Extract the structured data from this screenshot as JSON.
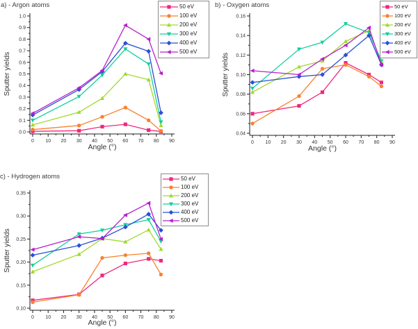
{
  "chart_data": [
    {
      "id": "a",
      "type": "line",
      "title": "a) - Argon atoms",
      "xlabel": "Angle (°)",
      "ylabel": "Sputter yields",
      "x": [
        0,
        30,
        45,
        60,
        75,
        83
      ],
      "xlim": [
        0,
        90
      ],
      "xtick_values": [
        0,
        10,
        20,
        30,
        40,
        50,
        60,
        70,
        80,
        90
      ],
      "xtick_labels": [
        "0",
        "10",
        "20",
        "30",
        "40",
        "50",
        "60",
        "70",
        "80",
        "90"
      ],
      "ylim": [
        0.0,
        1.0
      ],
      "ytick_values": [
        0.0,
        0.1,
        0.2,
        0.3,
        0.4,
        0.5,
        0.6,
        0.7,
        0.8,
        0.9,
        1.0
      ],
      "ytick_labels": [
        "0.0",
        "0.1",
        "0.2",
        "0.3",
        "0.4",
        "0.5",
        "0.6",
        "0.7",
        "0.8",
        "0.9",
        "1.0"
      ],
      "grid": false,
      "legend_position": "top-right",
      "series": [
        {
          "name": "50 eV",
          "color": "#f0277d",
          "marker": "square",
          "values": [
            0.005,
            0.01,
            0.045,
            0.065,
            0.015,
            0.004
          ]
        },
        {
          "name": "100 eV",
          "color": "#f8822e",
          "marker": "circle",
          "values": [
            0.02,
            0.055,
            0.13,
            0.21,
            0.1,
            0.008
          ]
        },
        {
          "name": "200 eV",
          "color": "#a2d92e",
          "marker": "triangle-up",
          "values": [
            0.06,
            0.17,
            0.29,
            0.5,
            0.45,
            0.055
          ]
        },
        {
          "name": "300 eV",
          "color": "#12cf9b",
          "marker": "triangle-down",
          "values": [
            0.1,
            0.305,
            0.49,
            0.715,
            0.585,
            0.085
          ]
        },
        {
          "name": "400 eV",
          "color": "#2b4fd7",
          "marker": "diamond",
          "values": [
            0.145,
            0.365,
            0.52,
            0.765,
            0.695,
            0.165
          ]
        },
        {
          "name": "500 eV",
          "color": "#b81ecb",
          "marker": "triangle-left",
          "values": [
            0.16,
            0.38,
            0.53,
            0.92,
            0.8,
            0.505
          ]
        }
      ]
    },
    {
      "id": "b",
      "type": "line",
      "title": "b) - Oxygen atoms",
      "xlabel": "Angle (°)",
      "ylabel": "Sputter yields",
      "x": [
        0,
        30,
        45,
        60,
        75,
        83
      ],
      "xlim": [
        0,
        90
      ],
      "xtick_values": [
        0,
        10,
        20,
        30,
        40,
        50,
        60,
        70,
        80,
        90
      ],
      "xtick_labels": [
        "0",
        "10",
        "20",
        "30",
        "40",
        "50",
        "60",
        "70",
        "80",
        "90"
      ],
      "ylim": [
        0.04,
        0.16
      ],
      "ytick_values": [
        0.04,
        0.06,
        0.08,
        0.1,
        0.12,
        0.14,
        0.16
      ],
      "ytick_labels": [
        "0.04",
        "0.06",
        "0.08",
        "0.10",
        "0.12",
        "0.14",
        "0.16"
      ],
      "grid": false,
      "legend_position": "top-right",
      "series": [
        {
          "name": "50 eV",
          "color": "#f0277d",
          "marker": "square",
          "values": [
            0.06,
            0.068,
            0.082,
            0.112,
            0.1,
            0.092
          ]
        },
        {
          "name": "100 eV",
          "color": "#f8822e",
          "marker": "circle",
          "values": [
            0.05,
            0.078,
            0.106,
            0.11,
            0.098,
            0.088
          ]
        },
        {
          "name": "200 eV",
          "color": "#a2d92e",
          "marker": "triangle-up",
          "values": [
            0.082,
            0.108,
            0.114,
            0.134,
            0.145,
            0.113
          ]
        },
        {
          "name": "300 eV",
          "color": "#12cf9b",
          "marker": "triangle-down",
          "values": [
            0.086,
            0.126,
            0.133,
            0.152,
            0.143,
            0.114
          ]
        },
        {
          "name": "400 eV",
          "color": "#2b4fd7",
          "marker": "diamond",
          "values": [
            0.092,
            0.098,
            0.1,
            0.12,
            0.14,
            0.11
          ]
        },
        {
          "name": "500 eV",
          "color": "#b81ecb",
          "marker": "triangle-left",
          "values": [
            0.104,
            0.1,
            0.116,
            0.13,
            0.148,
            0.11
          ]
        }
      ]
    },
    {
      "id": "c",
      "type": "line",
      "title": "c) - Hydrogen atoms",
      "xlabel": "Angle (°)",
      "ylabel": "Sputter yields",
      "x": [
        0,
        30,
        45,
        60,
        75,
        83
      ],
      "xlim": [
        0,
        90
      ],
      "xtick_values": [
        0,
        10,
        20,
        30,
        40,
        50,
        60,
        70,
        80,
        90
      ],
      "xtick_labels": [
        "0",
        "10",
        "20",
        "30",
        "40",
        "50",
        "60",
        "70",
        "80",
        "90"
      ],
      "ylim": [
        0.1,
        0.35
      ],
      "ytick_values": [
        0.1,
        0.15,
        0.2,
        0.25,
        0.3,
        0.35
      ],
      "ytick_labels": [
        "0.10",
        "0.15",
        "0.20",
        "0.25",
        "0.30",
        "0.35"
      ],
      "grid": false,
      "legend_position": "top-right",
      "series": [
        {
          "name": "50 eV",
          "color": "#f0277d",
          "marker": "square",
          "values": [
            0.117,
            0.13,
            0.171,
            0.197,
            0.207,
            0.203
          ]
        },
        {
          "name": "100 eV",
          "color": "#f8822e",
          "marker": "circle",
          "values": [
            0.113,
            0.129,
            0.209,
            0.215,
            0.219,
            0.173
          ]
        },
        {
          "name": "200 eV",
          "color": "#a2d92e",
          "marker": "triangle-up",
          "values": [
            0.179,
            0.217,
            0.251,
            0.244,
            0.27,
            0.228
          ]
        },
        {
          "name": "300 eV",
          "color": "#12cf9b",
          "marker": "triangle-down",
          "values": [
            0.193,
            0.261,
            0.269,
            0.281,
            0.292,
            0.245
          ]
        },
        {
          "name": "400 eV",
          "color": "#2b4fd7",
          "marker": "diamond",
          "values": [
            0.215,
            0.236,
            0.252,
            0.276,
            0.304,
            0.269
          ]
        },
        {
          "name": "500 eV",
          "color": "#b81ecb",
          "marker": "triangle-left",
          "values": [
            0.227,
            0.255,
            0.251,
            0.302,
            0.328,
            0.25
          ]
        }
      ]
    }
  ]
}
